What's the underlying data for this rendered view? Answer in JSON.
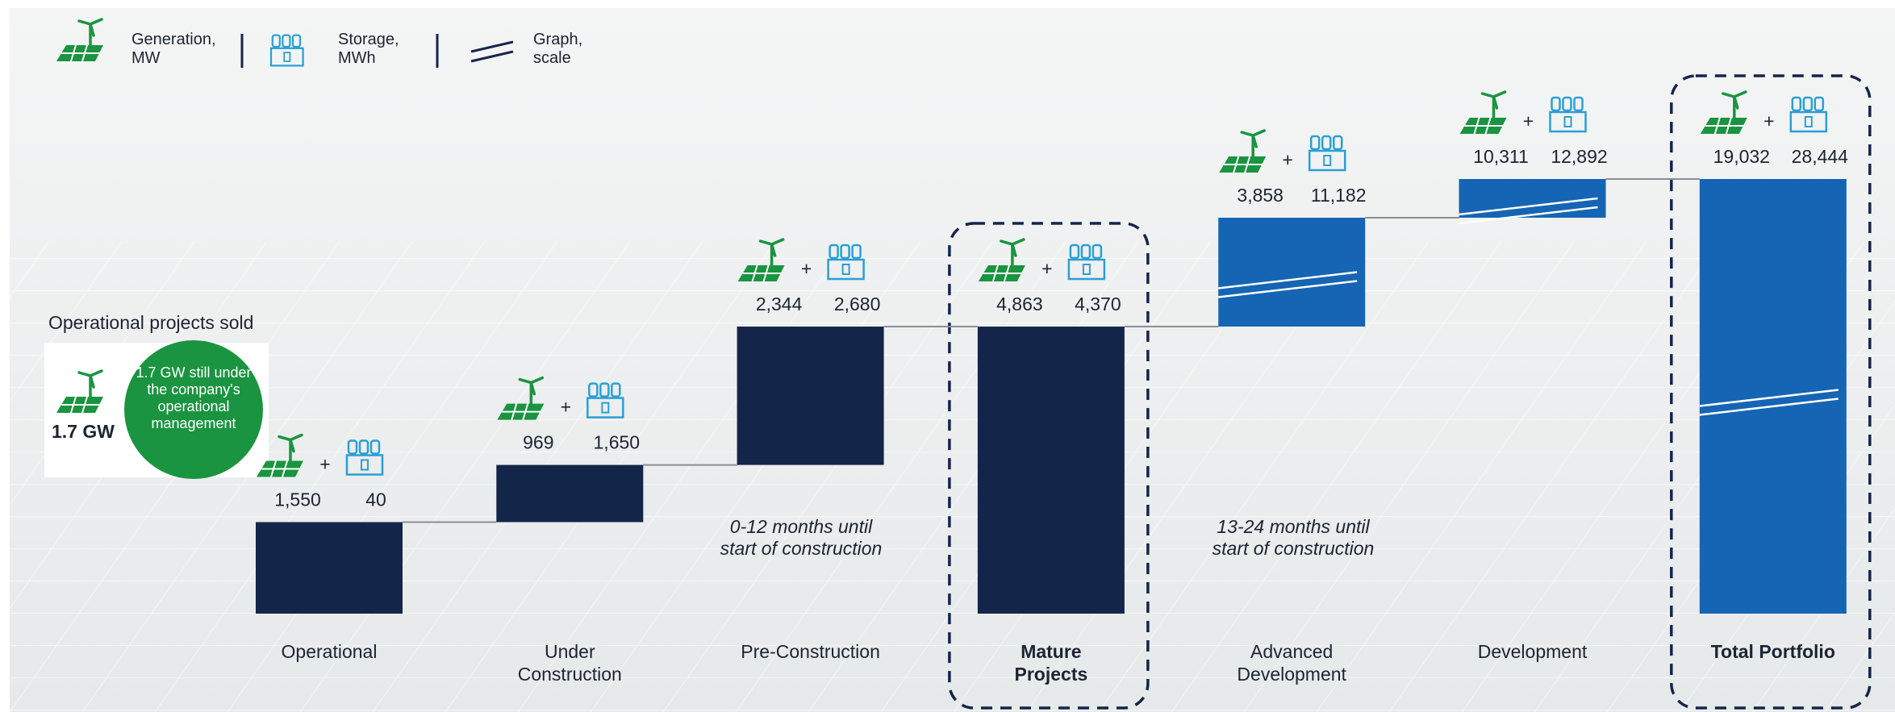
{
  "chart_data": {
    "type": "waterfall",
    "categories": [
      "Operational",
      "Under Construction",
      "Pre-Construction",
      "Mature Projects",
      "Advanced Development",
      "Development",
      "Total Portfolio"
    ],
    "series": [
      {
        "name": "Generation, MW",
        "values": [
          1550,
          969,
          2344,
          4863,
          3858,
          10311,
          19032
        ],
        "value_labels": [
          "1,550",
          "969",
          "2,344",
          "4,863",
          "3,858",
          "10,311",
          "19,032"
        ],
        "color": "#1a9440"
      },
      {
        "name": "Storage, MWh",
        "values": [
          40,
          1650,
          2680,
          4370,
          11182,
          12892,
          28444
        ],
        "value_labels": [
          "40",
          "1,650",
          "2,680",
          "4,370",
          "11,182",
          "12,892",
          "28,444"
        ],
        "color": "#2a9fd6"
      }
    ],
    "totals": [
      3,
      6
    ],
    "bar_colors": [
      "#14254a",
      "#14254a",
      "#14254a",
      "#14254a",
      "#1565b4",
      "#1565b4",
      "#1565b4"
    ],
    "scale_break_label": "Graph, scale",
    "scale_breaks": [
      4,
      5,
      6
    ],
    "notes": {
      "pre": "0-12 months until start of construction",
      "adv": "13-24 months until start of construction"
    },
    "sold_box": {
      "title": "Operational projects sold",
      "capacity": "1.7 GW",
      "note": "1.7 GW still under the company's operational management"
    }
  }
}
